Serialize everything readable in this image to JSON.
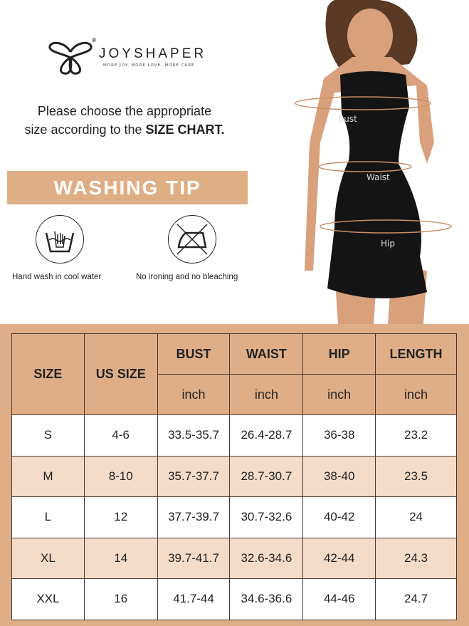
{
  "brand": {
    "name": "JOYSHAPER",
    "tagline": "MORE JOY. MORE LOVE. MORE CARE",
    "registered": "®"
  },
  "intro": {
    "line1": "Please choose the appropriate",
    "line2_prefix": "size according to the ",
    "line2_bold": "SIZE CHART."
  },
  "washing": {
    "title": "WASHING TIP",
    "tips": [
      {
        "icon": "hand-wash-icon",
        "label": "Hand wash in cool water"
      },
      {
        "icon": "no-ironing-icon",
        "label": "No ironing and no bleaching"
      }
    ]
  },
  "model": {
    "labels": [
      "Bust",
      "Waist",
      "Hip"
    ]
  },
  "colors": {
    "accent": "#dfae87",
    "row_alt": "#f4dcc9"
  },
  "size_chart": {
    "headers": [
      "SIZE",
      "US SIZE",
      "BUST",
      "WAIST",
      "HIP",
      "LENGTH"
    ],
    "units": [
      "inch",
      "inch",
      "inch",
      "inch"
    ],
    "rows": [
      [
        "S",
        "4-6",
        "33.5-35.7",
        "26.4-28.7",
        "36-38",
        "23.2"
      ],
      [
        "M",
        "8-10",
        "35.7-37.7",
        "28.7-30.7",
        "38-40",
        "23.5"
      ],
      [
        "L",
        "12",
        "37.7-39.7",
        "30.7-32.6",
        "40-42",
        "24"
      ],
      [
        "XL",
        "14",
        "39.7-41.7",
        "32.6-34.6",
        "42-44",
        "24.3"
      ],
      [
        "XXL",
        "16",
        "41.7-44",
        "34.6-36.6",
        "44-46",
        "24.7"
      ]
    ]
  }
}
